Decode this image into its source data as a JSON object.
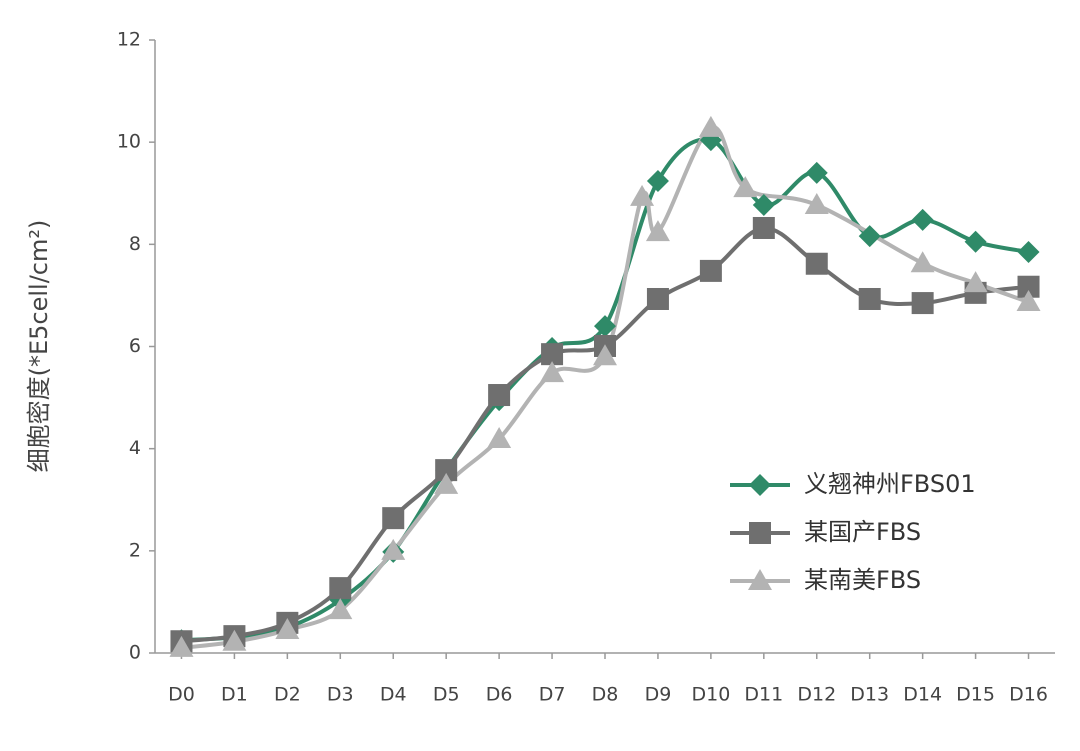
{
  "chart_data": {
    "type": "line",
    "y_label": "细胞密度(*E5cell/cm²)",
    "xlim": [
      -0.5,
      16.5
    ],
    "xticks": [
      {
        "value": 0,
        "label": "D0"
      },
      {
        "value": 1,
        "label": "D1"
      },
      {
        "value": 2,
        "label": "D2"
      },
      {
        "value": 3,
        "label": "D3"
      },
      {
        "value": 4,
        "label": "D4"
      },
      {
        "value": 5,
        "label": "D5"
      },
      {
        "value": 6,
        "label": "D6"
      },
      {
        "value": 7,
        "label": "D7"
      },
      {
        "value": 8,
        "label": "D8"
      },
      {
        "value": 9,
        "label": "D9"
      },
      {
        "value": 10,
        "label": "D10"
      },
      {
        "value": 11,
        "label": "D11"
      },
      {
        "value": 12,
        "label": "D12"
      },
      {
        "value": 13,
        "label": "D13"
      },
      {
        "value": 14,
        "label": "D14"
      },
      {
        "value": 15,
        "label": "D15"
      },
      {
        "value": 16,
        "label": "D16"
      }
    ],
    "ylim": [
      0,
      12
    ],
    "yticks": [
      0,
      2,
      4,
      6,
      8,
      10,
      12
    ],
    "grid": false,
    "legend": "right",
    "series": [
      {
        "name": "义翘神州FBS01",
        "color": "#2f8a68",
        "marker": "diamond",
        "x": [
          0,
          1,
          2,
          3,
          4,
          5,
          6,
          7,
          8,
          9,
          10,
          11,
          12,
          13,
          14,
          15,
          16
        ],
        "values": [
          0.25,
          0.31,
          0.5,
          1.04,
          1.98,
          3.58,
          4.95,
          5.97,
          6.4,
          9.24,
          10.04,
          8.77,
          9.4,
          8.16,
          8.48,
          8.05,
          7.85
        ]
      },
      {
        "name": "某国产FBS",
        "color": "#6f6f6f",
        "marker": "square",
        "x": [
          0,
          1,
          2,
          3,
          4,
          5,
          6,
          7,
          8,
          9,
          10,
          11,
          12,
          13,
          14,
          15,
          16
        ],
        "values": [
          0.23,
          0.33,
          0.59,
          1.27,
          2.64,
          3.58,
          5.05,
          5.85,
          6.01,
          6.93,
          7.48,
          8.32,
          7.62,
          6.93,
          6.85,
          7.05,
          7.17
        ]
      },
      {
        "name": "某南美FBS",
        "color": "#b3b3b3",
        "marker": "triangle",
        "x": [
          0,
          1,
          2,
          3,
          4,
          5,
          6,
          7,
          8,
          8.7,
          9,
          10,
          10.65,
          12,
          14,
          15,
          16
        ],
        "values": [
          0.1,
          0.22,
          0.45,
          0.84,
          2.0,
          3.29,
          4.19,
          5.48,
          5.81,
          8.93,
          8.24,
          10.28,
          9.1,
          8.77,
          7.63,
          7.24,
          6.87
        ]
      }
    ]
  }
}
